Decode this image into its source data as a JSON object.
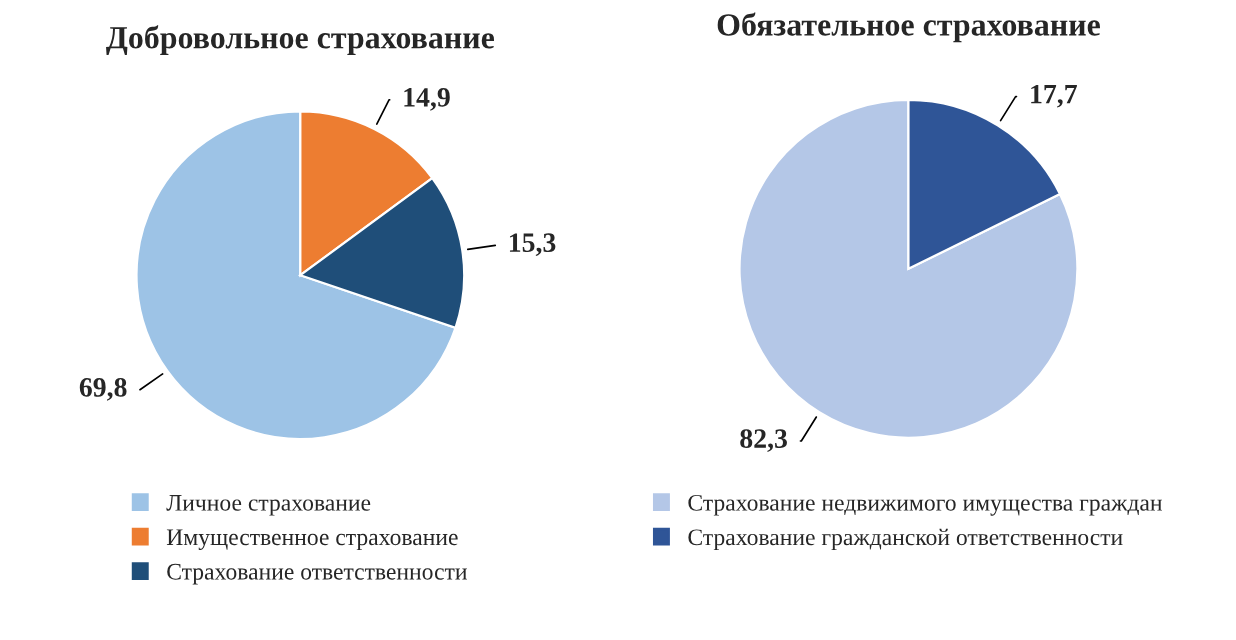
{
  "chart_data": [
    {
      "type": "pie",
      "title": "Добровольное страхование",
      "categories": [
        "Личное страхование",
        "Имущественное страхование",
        "Страхование ответственности"
      ],
      "values": [
        69.8,
        14.9,
        15.3
      ],
      "colors": [
        "#9dc3e6",
        "#ed7d31",
        "#1f4e79"
      ],
      "value_labels": [
        "69,8",
        "14,9",
        "15,3"
      ],
      "legend": "bottom"
    },
    {
      "type": "pie",
      "title": "Обязательное страхование",
      "categories": [
        "Страхование недвижимого имущества граждан",
        "Страхование гражданской ответственности"
      ],
      "values": [
        82.3,
        17.7
      ],
      "colors": [
        "#b4c7e7",
        "#2f5597"
      ],
      "value_labels": [
        "82,3",
        "17,7"
      ],
      "legend": "bottom"
    }
  ]
}
